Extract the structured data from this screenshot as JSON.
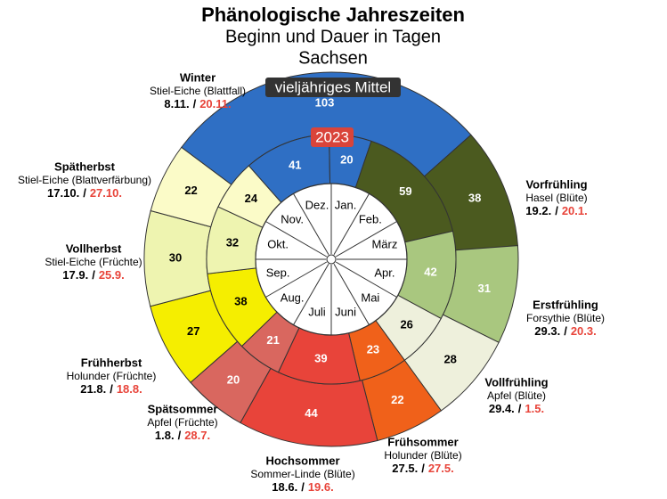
{
  "chart_data": {
    "type": "phenological-clock",
    "title": "Phänologische Jahreszeiten",
    "subtitle": "Beginn und Dauer in Tagen",
    "region": "Sachsen",
    "months": [
      "Jan.",
      "Feb.",
      "März",
      "Apr.",
      "Mai",
      "Juni",
      "Juli",
      "Aug.",
      "Sep.",
      "Okt.",
      "Nov.",
      "Dez."
    ],
    "date_separator": "/",
    "seasons": [
      {
        "name": "Winter",
        "indicator": "Stiel-Eiche (Blattfall)",
        "mean_start": "8.11.",
        "start_2023": "20.11."
      },
      {
        "name": "Vorfrühling",
        "indicator": "Hasel (Blüte)",
        "mean_start": "19.2.",
        "start_2023": "20.1."
      },
      {
        "name": "Erstfrühling",
        "indicator": "Forsythie (Blüte)",
        "mean_start": "29.3.",
        "start_2023": "20.3."
      },
      {
        "name": "Vollfrühling",
        "indicator": "Apfel (Blüte)",
        "mean_start": "29.4.",
        "start_2023": "1.5."
      },
      {
        "name": "Frühsommer",
        "indicator": "Holunder (Blüte)",
        "mean_start": "27.5.",
        "start_2023": "27.5."
      },
      {
        "name": "Hochsommer",
        "indicator": "Sommer-Linde (Blüte)",
        "mean_start": "18.6.",
        "start_2023": "19.6."
      },
      {
        "name": "Spätsommer",
        "indicator": "Apfel (Früchte)",
        "mean_start": "1.8.",
        "start_2023": "28.7."
      },
      {
        "name": "Frühherbst",
        "indicator": "Holunder (Früchte)",
        "mean_start": "21.8.",
        "start_2023": "18.8."
      },
      {
        "name": "Vollherbst",
        "indicator": "Stiel-Eiche (Früchte)",
        "mean_start": "17.9.",
        "start_2023": "25.9."
      },
      {
        "name": "Spätherbst",
        "indicator": "Stiel-Eiche (Blattverfärbung)",
        "mean_start": "17.10.",
        "start_2023": "27.10."
      }
    ],
    "series": [
      {
        "name": "vieljähriges Mittel",
        "values": [
          103,
          38,
          31,
          28,
          22,
          44,
          20,
          27,
          30,
          22
        ],
        "colors": [
          "#2f6fc4",
          "#4b5a1f",
          "#a9c77f",
          "#eef0dc",
          "#f0611a",
          "#e8443a",
          "#d9675f",
          "#f5ee00",
          "#eef4b0",
          "#fbfbc8"
        ]
      },
      {
        "name": "2023",
        "values": [
          41,
          20,
          59,
          42,
          26,
          23,
          39,
          21,
          38,
          32,
          24
        ],
        "colors": [
          "#2f6fc4",
          "#2f6fc4",
          "#4b5a1f",
          "#a9c77f",
          "#eef0dc",
          "#f0611a",
          "#e8443a",
          "#d9675f",
          "#f5ee00",
          "#eef4b0",
          "#fbfbc8"
        ]
      }
    ]
  }
}
